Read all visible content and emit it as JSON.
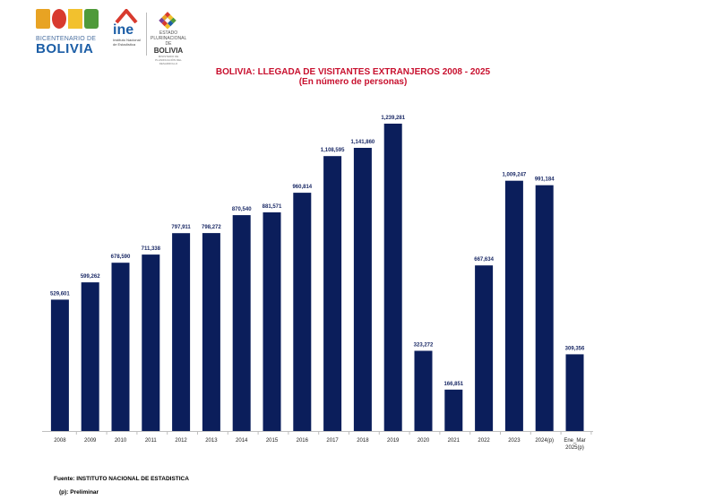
{
  "logos": {
    "bicentenario": {
      "small": "BICENTENARIO DE",
      "big": "BOLIVIA"
    },
    "ine": {
      "name": "ine",
      "sub1": "Instituto Nacional",
      "sub2": "de Estadística"
    },
    "gov": {
      "small": "ESTADO PLURINACIONAL DE",
      "big": "BOLIVIA",
      "tiny": "MINISTERIO DE PLANIFICACIÓN DEL DESARROLLO"
    }
  },
  "title": "BOLIVIA: LLEGADA DE VISITANTES EXTRANJEROS 2008 - 2025",
  "subtitle": "(En número de personas)",
  "source": "Fuente: INSTITUTO NACIONAL DE ESTADISTICA",
  "note": "(p): Preliminar",
  "colors": {
    "bar": "#0b1e5b",
    "title": "#c8102e",
    "label": "#1b2a66"
  },
  "chart_data": {
    "type": "bar",
    "title": "BOLIVIA: LLEGADA DE VISITANTES EXTRANJEROS 2008 - 2025",
    "subtitle": "(En número de personas)",
    "xlabel": "",
    "ylabel": "",
    "grid": false,
    "legend": "none",
    "ylim": [
      0,
      1239281
    ],
    "categories": [
      "2008",
      "2009",
      "2010",
      "2011",
      "2012",
      "2013",
      "2014",
      "2015",
      "2016",
      "2017",
      "2018",
      "2019",
      "2020",
      "2021",
      "2022",
      "2023",
      "2024(p)",
      "Ene_Mar 2025(p)"
    ],
    "values": [
      529601,
      599262,
      678590,
      711338,
      797911,
      798272,
      870540,
      881571,
      960814,
      1108595,
      1141860,
      1239281,
      323272,
      166851,
      667634,
      1009247,
      991184,
      309356
    ],
    "labels": [
      "529,601",
      "599,262",
      "678,590",
      "711,338",
      "797,911",
      "798,272",
      "870,540",
      "881,571",
      "960,814",
      "1,108,595",
      "1,141,860",
      "1,239,281",
      "323,272",
      "166,851",
      "667,634",
      "1,009,247",
      "991,184",
      "309,356"
    ]
  }
}
